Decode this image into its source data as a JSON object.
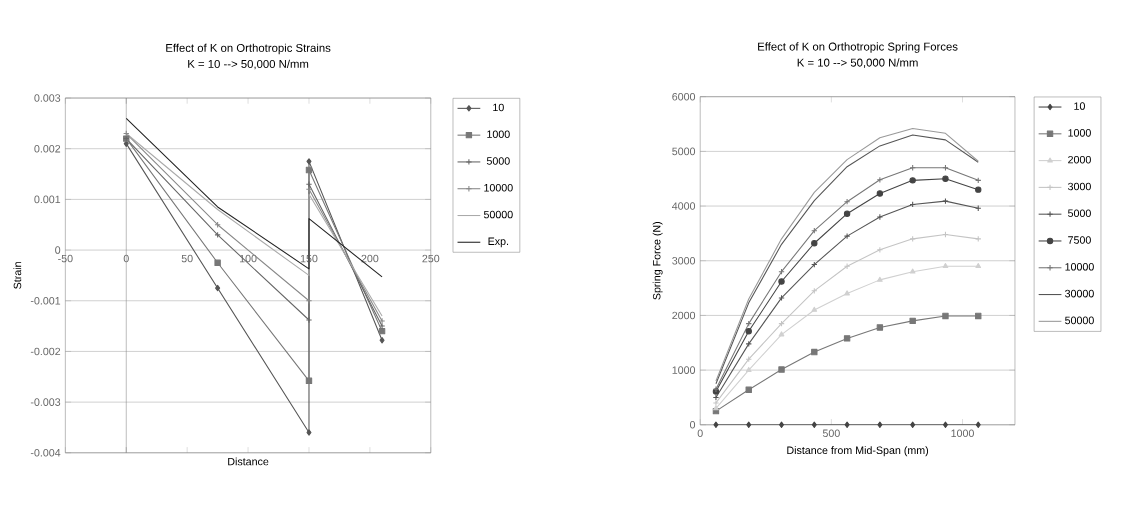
{
  "chart_data": [
    {
      "type": "line",
      "title": "Effect of K on Orthotropic Strains",
      "subtitle": "K = 10 --> 50,000 N/mm",
      "xlabel": "Distance",
      "ylabel": "Strain",
      "xlim": [
        -50,
        250
      ],
      "ylim": [
        -0.004,
        0.003
      ],
      "xticks": [
        -50,
        0,
        50,
        100,
        150,
        200,
        250
      ],
      "yticks": [
        -0.004,
        -0.003,
        -0.002,
        -0.001,
        0,
        0.001,
        0.002,
        0.003
      ],
      "grid": "y",
      "legend": "right",
      "series": [
        {
          "name": "10",
          "color": "#555555",
          "marker": "diamond",
          "x": [
            0,
            75,
            150,
            150,
            210
          ],
          "values": [
            0.0021,
            -0.00075,
            -0.0036,
            0.00175,
            -0.00178
          ]
        },
        {
          "name": "1000",
          "color": "#777777",
          "marker": "square",
          "x": [
            0,
            75,
            150,
            150,
            210
          ],
          "values": [
            0.0022,
            -0.00025,
            -0.00258,
            0.00158,
            -0.0016
          ]
        },
        {
          "name": "5000",
          "color": "#666666",
          "marker": "cross",
          "x": [
            0,
            75,
            150,
            150,
            210
          ],
          "values": [
            0.0022,
            0.0003,
            -0.00138,
            0.0013,
            -0.0015
          ]
        },
        {
          "name": "10000",
          "color": "#888888",
          "marker": "cross",
          "x": [
            0,
            75,
            150,
            150,
            210
          ],
          "values": [
            0.0023,
            0.0005,
            -0.001,
            0.0012,
            -0.0014
          ]
        },
        {
          "name": "50000",
          "color": "#aaaaaa",
          "marker": "none",
          "x": [
            0,
            75,
            150,
            150,
            210
          ],
          "values": [
            0.0023,
            0.0008,
            -0.0005,
            0.0011,
            -0.0013
          ]
        },
        {
          "name": "Exp.",
          "color": "#222222",
          "marker": "none",
          "x": [
            0,
            75,
            150,
            150,
            210
          ],
          "values": [
            0.0026,
            0.00085,
            -0.00037,
            0.00062,
            -0.00053
          ]
        }
      ]
    },
    {
      "type": "line",
      "title": "Effect of K on Orthotropic Spring Forces",
      "subtitle": "K = 10 --> 50,000 N/mm",
      "xlabel": "Distance from Mid-Span (mm)",
      "ylabel": "Spring Force (N)",
      "xlim": [
        0,
        1200
      ],
      "ylim": [
        0,
        6000
      ],
      "xticks": [
        0,
        500,
        1000
      ],
      "yticks": [
        0,
        1000,
        2000,
        3000,
        4000,
        5000,
        6000
      ],
      "grid": "y",
      "legend": "right",
      "x": [
        60,
        185,
        310,
        435,
        560,
        685,
        810,
        935,
        1060
      ],
      "series": [
        {
          "name": "10",
          "color": "#444444",
          "marker": "diamond",
          "values": [
            0,
            0,
            0,
            0,
            0,
            0,
            0,
            0,
            0
          ]
        },
        {
          "name": "1000",
          "color": "#777777",
          "marker": "square",
          "values": [
            250,
            640,
            1010,
            1330,
            1580,
            1780,
            1900,
            1990,
            1990
          ]
        },
        {
          "name": "2000",
          "color": "#d0d0d0",
          "marker": "triangle",
          "values": [
            300,
            1000,
            1650,
            2100,
            2400,
            2650,
            2800,
            2900,
            2900
          ]
        },
        {
          "name": "3000",
          "color": "#c4c4c4",
          "marker": "cross",
          "values": [
            400,
            1200,
            1850,
            2450,
            2900,
            3200,
            3400,
            3480,
            3400
          ]
        },
        {
          "name": "5000",
          "color": "#555555",
          "marker": "cross",
          "values": [
            500,
            1480,
            2320,
            2930,
            3450,
            3800,
            4030,
            4090,
            3960
          ]
        },
        {
          "name": "7500",
          "color": "#444444",
          "marker": "circle",
          "values": [
            610,
            1710,
            2620,
            3320,
            3860,
            4230,
            4470,
            4500,
            4300
          ]
        },
        {
          "name": "10000",
          "color": "#777777",
          "marker": "cross",
          "values": [
            650,
            1850,
            2800,
            3550,
            4080,
            4480,
            4700,
            4700,
            4470
          ]
        },
        {
          "name": "30000",
          "color": "#555555",
          "marker": "none",
          "values": [
            750,
            2230,
            3300,
            4100,
            4720,
            5100,
            5300,
            5210,
            4800
          ]
        },
        {
          "name": "50000",
          "color": "#999999",
          "marker": "none",
          "values": [
            800,
            2300,
            3400,
            4250,
            4850,
            5250,
            5420,
            5330,
            4820
          ]
        }
      ]
    }
  ]
}
